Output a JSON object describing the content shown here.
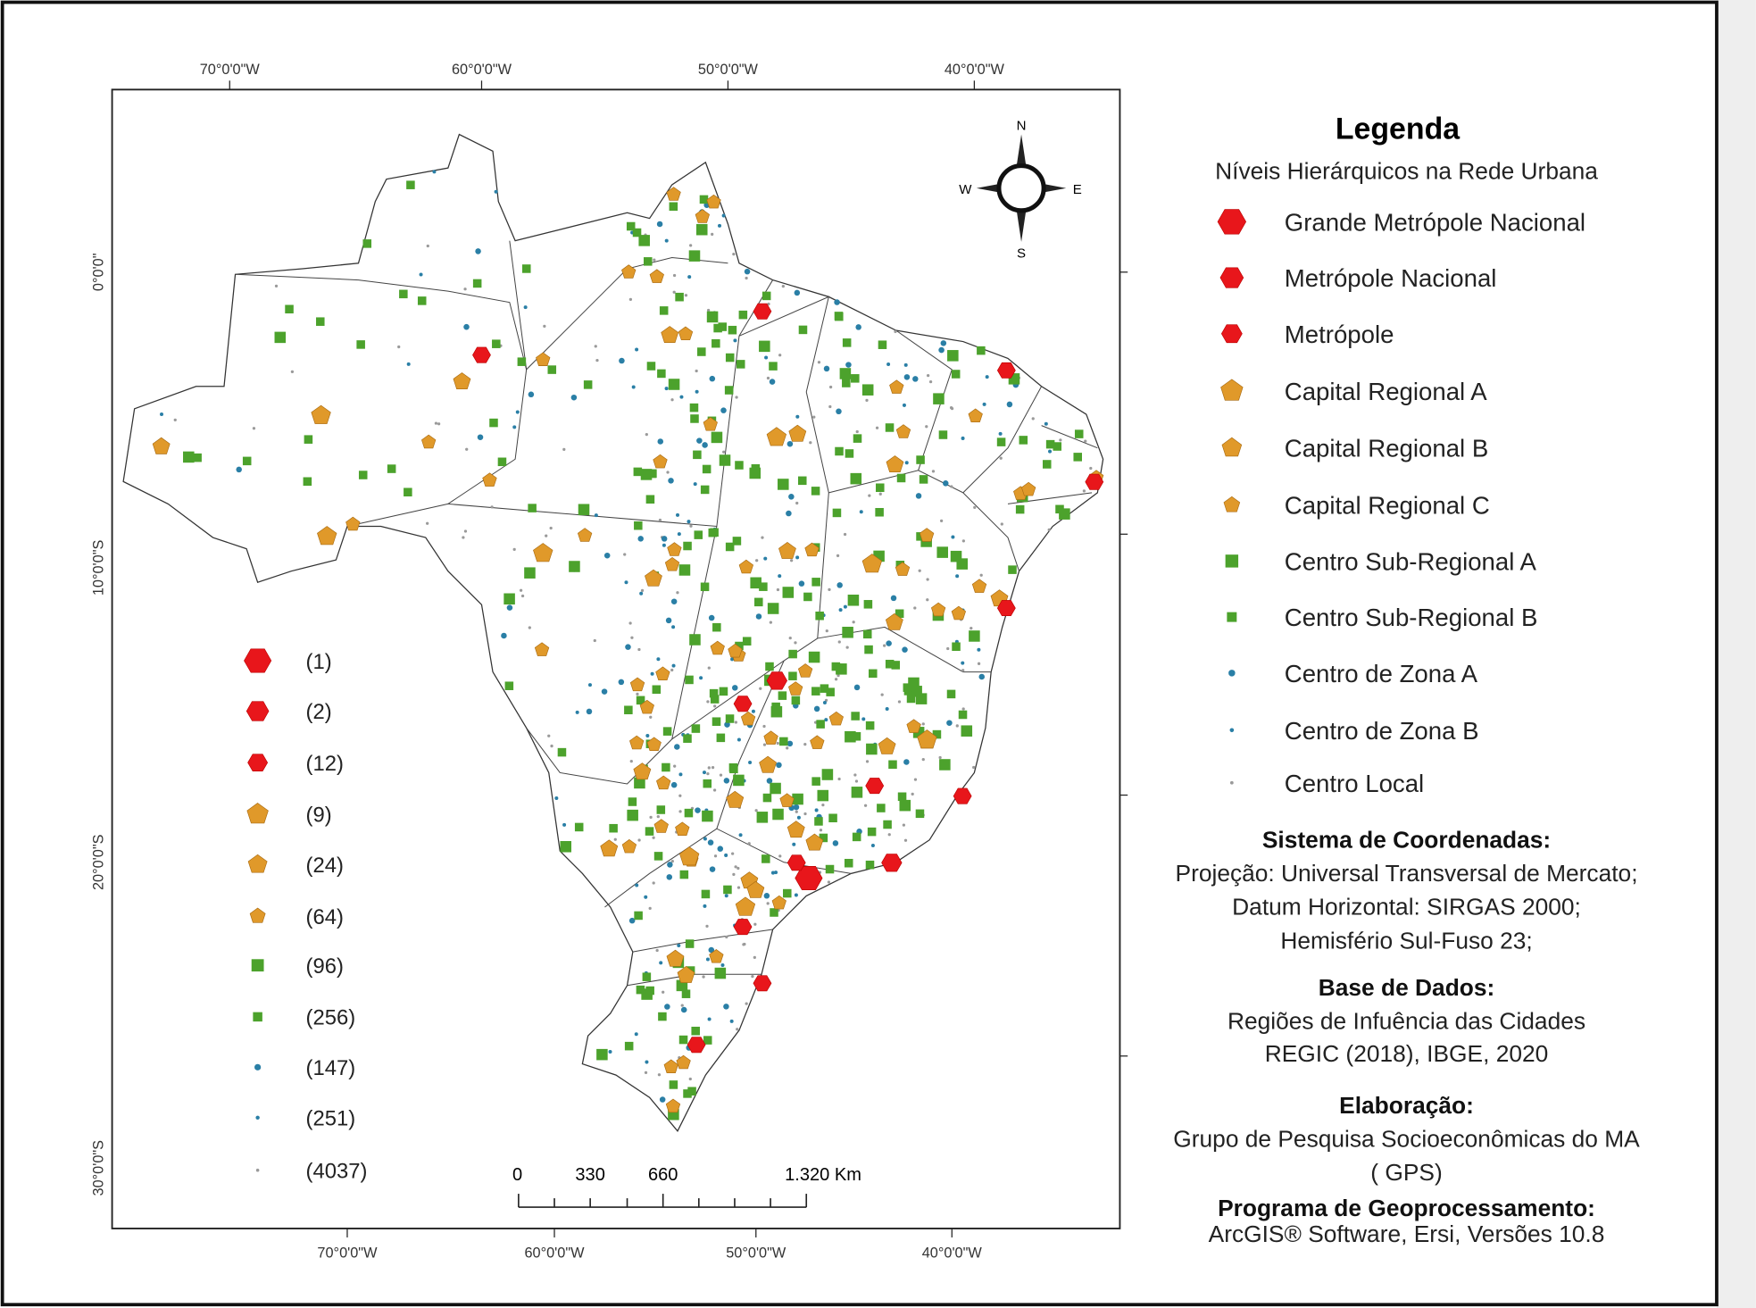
{
  "colors": {
    "red": "#e8161b",
    "orange": "#e0992a",
    "green": "#4ca22c",
    "blue": "#2a7fa6",
    "grey": "#9a9a9a",
    "side_strip": "#eeeeee"
  },
  "axes": {
    "top": [
      "70°0'0\"W",
      "60°0'0\"W",
      "50°0'0\"W",
      "40°0'0\"W"
    ],
    "bottom": [
      "70°0'0\"W",
      "60°0'0\"W",
      "50°0'0\"W",
      "40°0'0\"W"
    ],
    "left": [
      "0°0'0\"",
      "10°0'0\"S",
      "20°0'0\"S",
      "30°0'0\"S"
    ]
  },
  "north_arrow": {
    "n": "N",
    "s": "S",
    "e": "E",
    "w": "W"
  },
  "scale_bar": {
    "labels": [
      "0",
      "330",
      "660",
      "1.320 Km"
    ]
  },
  "legend": {
    "title": "Legenda",
    "subtitle": "Níveis Hierárquicos na Rede Urbana",
    "items": [
      {
        "label": "Grande Metrópole Nacional",
        "count": "(1)",
        "shape": "hexagon",
        "color": "#e8161b"
      },
      {
        "label": "Metrópole Nacional",
        "count": "(2)",
        "shape": "hexagon",
        "color": "#e8161b"
      },
      {
        "label": "Metrópole",
        "count": "(12)",
        "shape": "hexagon",
        "color": "#e8161b"
      },
      {
        "label": "Capital Regional A",
        "count": "(9)",
        "shape": "pentagon",
        "color": "#e0992a"
      },
      {
        "label": "Capital Regional B",
        "count": "(24)",
        "shape": "pentagon",
        "color": "#e0992a"
      },
      {
        "label": "Capital Regional C",
        "count": "(64)",
        "shape": "pentagon",
        "color": "#e0992a"
      },
      {
        "label": "Centro Sub-Regional A",
        "count": "(96)",
        "shape": "square",
        "color": "#4ca22c"
      },
      {
        "label": "Centro Sub-Regional B",
        "count": "(256)",
        "shape": "square",
        "color": "#4ca22c"
      },
      {
        "label": "Centro de Zona A",
        "count": "(147)",
        "shape": "circle",
        "color": "#2a7fa6"
      },
      {
        "label": "Centro de Zona B",
        "count": "(251)",
        "shape": "circle",
        "color": "#2a7fa6"
      },
      {
        "label": "Centro Local",
        "count": "(4037)",
        "shape": "circle",
        "color": "#9a9a9a"
      }
    ]
  },
  "info": {
    "coord_title": "Sistema de Coordenadas:",
    "coord_lines": [
      "Projeção: Universal Transversal de Mercato;",
      "Datum Horizontal: SIRGAS 2000;",
      "Hemisfério Sul-Fuso 23;"
    ],
    "data_title": "Base de Dados:",
    "data_lines": [
      "Regiões de Infuência das Cidades",
      "REGIC (2018), IBGE, 2020"
    ],
    "author_title": "Elaboração:",
    "author_lines": [
      "Grupo de Pesquisa Socioeconômicas do MA",
      "( GPS)"
    ],
    "software_title": "Programa de Geoprocessamento:",
    "software_lines": [
      "ArcGIS® Software, Ersi, Versões 10.8"
    ]
  },
  "major_cities": [
    {
      "level": 0,
      "lat": -23.5,
      "lon": -46.6
    },
    {
      "level": 1,
      "lat": -22.9,
      "lon": -43.2
    },
    {
      "level": 1,
      "lat": -15.8,
      "lon": -47.9
    },
    {
      "level": 2,
      "lat": -3.1,
      "lon": -60.0
    },
    {
      "level": 2,
      "lat": -1.4,
      "lon": -48.5
    },
    {
      "level": 2,
      "lat": -3.7,
      "lon": -38.5
    },
    {
      "level": 2,
      "lat": -8.05,
      "lon": -34.9
    },
    {
      "level": 2,
      "lat": -12.97,
      "lon": -38.5
    },
    {
      "level": 2,
      "lat": -19.9,
      "lon": -43.9
    },
    {
      "level": 2,
      "lat": -16.7,
      "lon": -49.3
    },
    {
      "level": 2,
      "lat": -20.3,
      "lon": -40.3
    },
    {
      "level": 2,
      "lat": -25.4,
      "lon": -49.3
    },
    {
      "level": 2,
      "lat": -27.6,
      "lon": -48.5
    },
    {
      "level": 2,
      "lat": -30.0,
      "lon": -51.2
    },
    {
      "level": 2,
      "lat": -22.9,
      "lon": -47.1
    }
  ]
}
